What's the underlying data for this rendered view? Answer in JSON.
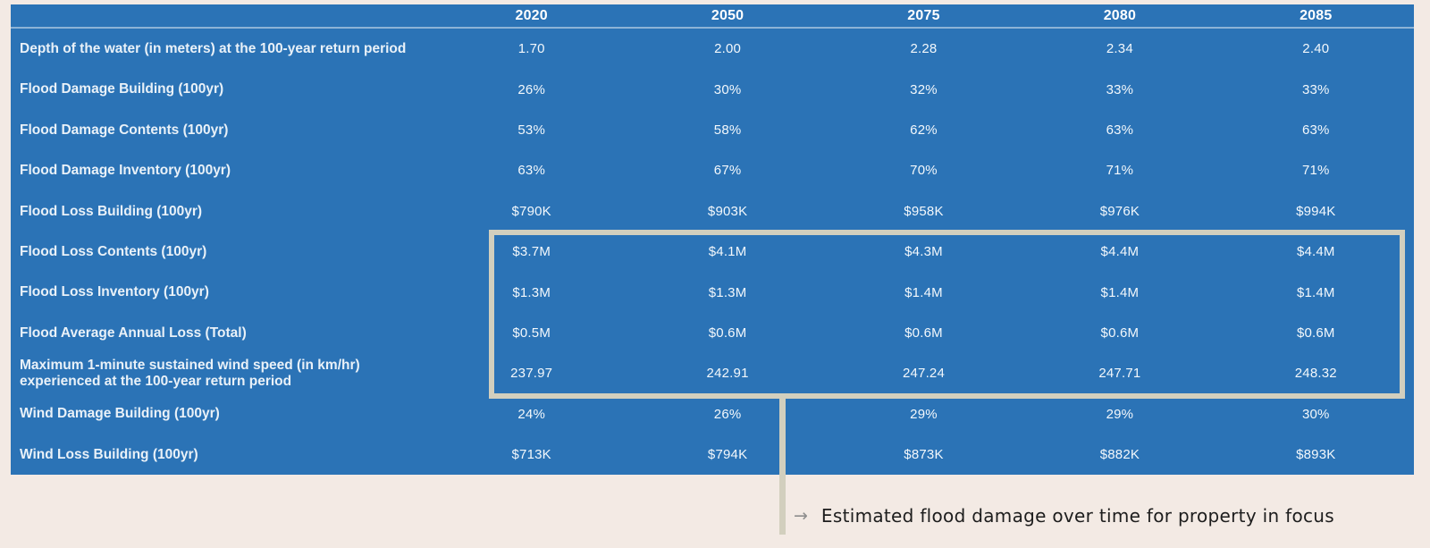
{
  "colors": {
    "page_background": "#f3eae4",
    "table_background": "#2b73b6",
    "header_text": "#ffffff",
    "label_text": "#e9f1f8",
    "value_text": "#f3f8fc",
    "highlight_border": "#d2cfbe",
    "annotation_text": "#1d1d1d",
    "annotation_arrow": "#8d8d8d"
  },
  "table": {
    "columns": [
      "2020",
      "2050",
      "2075",
      "2080",
      "2085"
    ],
    "rows": [
      {
        "label": "Depth of the water (in meters) at the 100-year return period",
        "values": [
          "1.70",
          "2.00",
          "2.28",
          "2.34",
          "2.40"
        ]
      },
      {
        "label": "Flood Damage Building (100yr)",
        "values": [
          "26%",
          "30%",
          "32%",
          "33%",
          "33%"
        ]
      },
      {
        "label": "Flood Damage Contents (100yr)",
        "values": [
          "53%",
          "58%",
          "62%",
          "63%",
          "63%"
        ]
      },
      {
        "label": "Flood Damage Inventory (100yr)",
        "values": [
          "63%",
          "67%",
          "70%",
          "71%",
          "71%"
        ]
      },
      {
        "label": "Flood Loss Building (100yr)",
        "values": [
          "$790K",
          "$903K",
          "$958K",
          "$976K",
          "$994K"
        ]
      },
      {
        "label": "Flood Loss Contents (100yr)",
        "values": [
          "$3.7M",
          "$4.1M",
          "$4.3M",
          "$4.4M",
          "$4.4M"
        ]
      },
      {
        "label": "Flood Loss Inventory (100yr)",
        "values": [
          "$1.3M",
          "$1.3M",
          "$1.4M",
          "$1.4M",
          "$1.4M"
        ]
      },
      {
        "label": "Flood Average Annual Loss (Total)",
        "values": [
          "$0.5M",
          "$0.6M",
          "$0.6M",
          "$0.6M",
          "$0.6M"
        ]
      },
      {
        "label": "Maximum 1-minute sustained wind speed (in km/hr)\nexperienced at the 100-year return period",
        "values": [
          "237.97",
          "242.91",
          "247.24",
          "247.71",
          "248.32"
        ]
      },
      {
        "label": "Wind Damage Building (100yr)",
        "values": [
          "24%",
          "26%",
          "29%",
          "29%",
          "30%"
        ]
      },
      {
        "label": "Wind Loss Building (100yr)",
        "values": [
          "$713K",
          "$794K",
          "$873K",
          "$882K",
          "$893K"
        ]
      }
    ]
  },
  "annotation": {
    "arrow": "→",
    "text": "Estimated flood damage over time for property in focus"
  },
  "chart_data": {
    "type": "table",
    "title": "",
    "categories": [
      "2020",
      "2050",
      "2075",
      "2080",
      "2085"
    ],
    "series": [
      {
        "name": "Depth of the water (in meters) at the 100-year return period",
        "values": [
          1.7,
          2.0,
          2.28,
          2.34,
          2.4
        ]
      },
      {
        "name": "Flood Damage Building (100yr)",
        "values": [
          "26%",
          "30%",
          "32%",
          "33%",
          "33%"
        ]
      },
      {
        "name": "Flood Damage Contents (100yr)",
        "values": [
          "53%",
          "58%",
          "62%",
          "63%",
          "63%"
        ]
      },
      {
        "name": "Flood Damage Inventory (100yr)",
        "values": [
          "63%",
          "67%",
          "70%",
          "71%",
          "71%"
        ]
      },
      {
        "name": "Flood Loss Building (100yr)",
        "values": [
          "$790K",
          "$903K",
          "$958K",
          "$976K",
          "$994K"
        ]
      },
      {
        "name": "Flood Loss Contents (100yr)",
        "values": [
          "$3.7M",
          "$4.1M",
          "$4.3M",
          "$4.4M",
          "$4.4M"
        ]
      },
      {
        "name": "Flood Loss Inventory (100yr)",
        "values": [
          "$1.3M",
          "$1.3M",
          "$1.4M",
          "$1.4M",
          "$1.4M"
        ]
      },
      {
        "name": "Flood Average Annual Loss (Total)",
        "values": [
          "$0.5M",
          "$0.6M",
          "$0.6M",
          "$0.6M",
          "$0.6M"
        ]
      },
      {
        "name": "Maximum 1-minute sustained wind speed (in km/hr) experienced at the 100-year return period",
        "values": [
          237.97,
          242.91,
          247.24,
          247.71,
          248.32
        ]
      },
      {
        "name": "Wind Damage Building (100yr)",
        "values": [
          "24%",
          "26%",
          "29%",
          "29%",
          "30%"
        ]
      },
      {
        "name": "Wind Loss Building (100yr)",
        "values": [
          "$713K",
          "$794K",
          "$873K",
          "$882K",
          "$893K"
        ]
      }
    ],
    "highlighted_rows": [
      "Flood Loss Contents (100yr)",
      "Flood Loss Inventory (100yr)",
      "Flood Average Annual Loss (Total)",
      "Maximum 1-minute sustained wind speed (in km/hr) experienced at the 100-year return period"
    ],
    "annotation": "Estimated flood damage over time for property in focus"
  }
}
